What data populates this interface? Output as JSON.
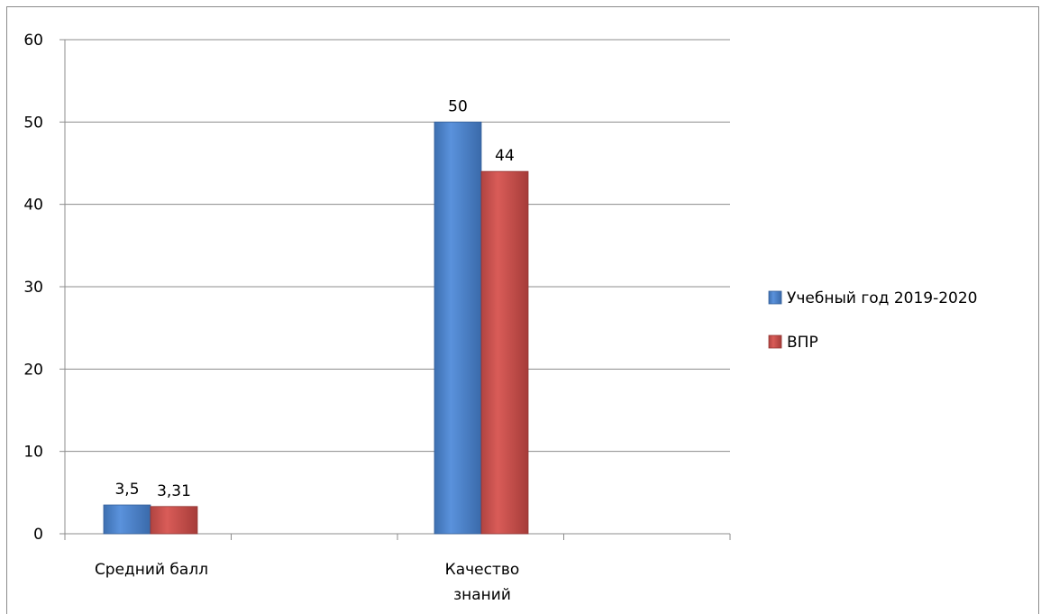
{
  "chart_data": {
    "type": "bar",
    "categories": [
      "Средний балл",
      "Качество знаний"
    ],
    "series": [
      {
        "name": "Учебный год 2019-2020",
        "values": [
          3.5,
          50
        ],
        "labels": [
          "3,5",
          "50"
        ],
        "color": "#4a7ebb"
      },
      {
        "name": "ВПР",
        "values": [
          3.31,
          44
        ],
        "labels": [
          "3,31",
          "44"
        ],
        "color": "#be4b48"
      }
    ],
    "y_ticks": [
      "0",
      "10",
      "20",
      "30",
      "40",
      "50",
      "60"
    ],
    "ylim": [
      0,
      60
    ],
    "grid": true,
    "legend_position": "right"
  }
}
